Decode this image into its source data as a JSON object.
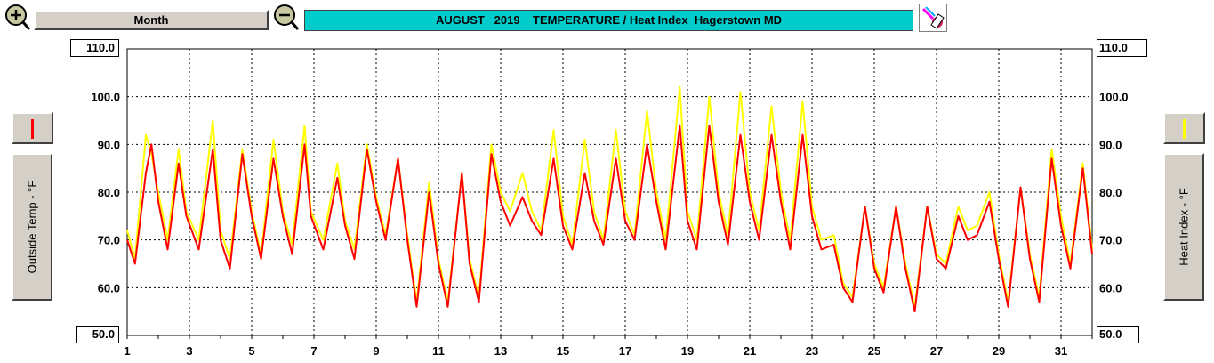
{
  "header": {
    "zoom_in_icon": "zoom-in-magnifier-icon",
    "period_label": "Month",
    "zoom_out_icon": "zoom-out-magnifier-icon",
    "title": "AUGUST   2019    TEMPERATURE / Heat Index  Hagerstown MD",
    "tool_icon": "eraser-tool-icon",
    "title_bg": "#00cccc"
  },
  "left_axis": {
    "top_label": "110.0",
    "bottom_label": "50.0",
    "series_label": "Outside Temp - °F",
    "series_color": "#ff0000"
  },
  "right_axis": {
    "top_label": "110.0",
    "bottom_label": "50.0",
    "series_label": "Heat Index - °F",
    "series_color": "#ffff00"
  },
  "chart_data": {
    "type": "line",
    "xlim": [
      1,
      32
    ],
    "ylim": [
      50,
      110
    ],
    "grid": true,
    "x_ticks": [
      "1",
      "3",
      "5",
      "7",
      "9",
      "11",
      "13",
      "15",
      "17",
      "19",
      "21",
      "23",
      "25",
      "27",
      "29",
      "31"
    ],
    "y_ticks": [
      "100.0",
      "90.0",
      "80.0",
      "70.0",
      "60.0"
    ],
    "series": [
      {
        "name": "Outside Temp - °F",
        "color": "#ff0000",
        "x": [
          1.0,
          1.25,
          1.6,
          1.78,
          2.0,
          2.3,
          2.65,
          2.9,
          3.3,
          3.75,
          4.0,
          4.3,
          4.7,
          5.0,
          5.3,
          5.7,
          6.0,
          6.3,
          6.7,
          6.9,
          7.3,
          7.75,
          8.0,
          8.3,
          8.7,
          9.0,
          9.3,
          9.7,
          10.0,
          10.3,
          10.7,
          11.0,
          11.3,
          11.75,
          12.0,
          12.3,
          12.7,
          13.0,
          13.3,
          13.7,
          14.0,
          14.3,
          14.7,
          15.0,
          15.3,
          15.7,
          16.0,
          16.3,
          16.7,
          17.0,
          17.3,
          17.7,
          18.0,
          18.3,
          18.75,
          19.0,
          19.3,
          19.7,
          20.0,
          20.3,
          20.7,
          21.0,
          21.3,
          21.7,
          22.0,
          22.3,
          22.7,
          23.0,
          23.3,
          23.7,
          24.0,
          24.3,
          24.7,
          25.0,
          25.3,
          25.7,
          26.0,
          26.3,
          26.7,
          27.0,
          27.3,
          27.7,
          28.0,
          28.3,
          28.7,
          29.0,
          29.3,
          29.7,
          30.0,
          30.3,
          30.7,
          31.0,
          31.3,
          31.7,
          32.0
        ],
        "y": [
          70,
          65,
          84,
          90,
          78,
          68,
          86,
          75,
          68,
          89,
          70,
          64,
          88,
          75,
          66,
          87,
          75,
          67,
          90,
          75,
          68,
          83,
          73,
          66,
          89,
          78,
          70,
          87,
          70,
          56,
          80,
          65,
          56,
          84,
          65,
          57,
          88,
          78,
          73,
          79,
          74,
          71,
          87,
          73,
          68,
          84,
          74,
          69,
          87,
          74,
          70,
          90,
          78,
          68,
          94,
          74,
          68,
          94,
          78,
          69,
          92,
          78,
          70,
          92,
          78,
          68,
          92,
          75,
          68,
          69,
          60,
          57,
          77,
          64,
          59,
          77,
          64,
          55,
          77,
          66,
          64,
          75,
          70,
          71,
          78,
          66,
          56,
          81,
          66,
          57,
          87,
          73,
          64,
          85,
          67
        ]
      },
      {
        "name": "Heat Index - °F",
        "color": "#ffff00",
        "x": [
          1.0,
          1.25,
          1.6,
          1.78,
          2.0,
          2.3,
          2.65,
          2.9,
          3.3,
          3.75,
          4.0,
          4.3,
          4.7,
          5.0,
          5.3,
          5.7,
          6.0,
          6.3,
          6.7,
          6.9,
          7.3,
          7.75,
          8.0,
          8.3,
          8.7,
          9.0,
          9.3,
          9.7,
          10.0,
          10.3,
          10.7,
          11.0,
          11.3,
          11.75,
          12.0,
          12.3,
          12.7,
          13.0,
          13.3,
          13.7,
          14.0,
          14.3,
          14.7,
          15.0,
          15.3,
          15.7,
          16.0,
          16.3,
          16.7,
          17.0,
          17.3,
          17.7,
          18.0,
          18.3,
          18.75,
          19.0,
          19.3,
          19.7,
          20.0,
          20.3,
          20.7,
          21.0,
          21.3,
          21.7,
          22.0,
          22.3,
          22.7,
          23.0,
          23.3,
          23.7,
          24.0,
          24.3,
          24.7,
          25.0,
          25.3,
          25.7,
          26.0,
          26.3,
          26.7,
          27.0,
          27.3,
          27.7,
          28.0,
          28.3,
          28.7,
          29.0,
          29.3,
          29.7,
          30.0,
          30.3,
          30.7,
          31.0,
          31.3,
          31.7,
          32.0
        ],
        "y": [
          72,
          66,
          92,
          88,
          80,
          70,
          89,
          76,
          70,
          95,
          72,
          66,
          89,
          76,
          67,
          91,
          76,
          69,
          94,
          76,
          70,
          86,
          74,
          68,
          90,
          79,
          71,
          87,
          71,
          57,
          82,
          66,
          57,
          84,
          66,
          58,
          90,
          80,
          76,
          84,
          76,
          72,
          93,
          75,
          69,
          91,
          76,
          70,
          93,
          76,
          71,
          97,
          80,
          70,
          102,
          76,
          70,
          100,
          80,
          71,
          101,
          80,
          72,
          98,
          80,
          70,
          99,
          77,
          70,
          71,
          61,
          58,
          77,
          65,
          60,
          77,
          65,
          56,
          77,
          67,
          65,
          77,
          72,
          73,
          80,
          67,
          57,
          81,
          67,
          58,
          89,
          75,
          65,
          86,
          68
        ]
      }
    ]
  }
}
